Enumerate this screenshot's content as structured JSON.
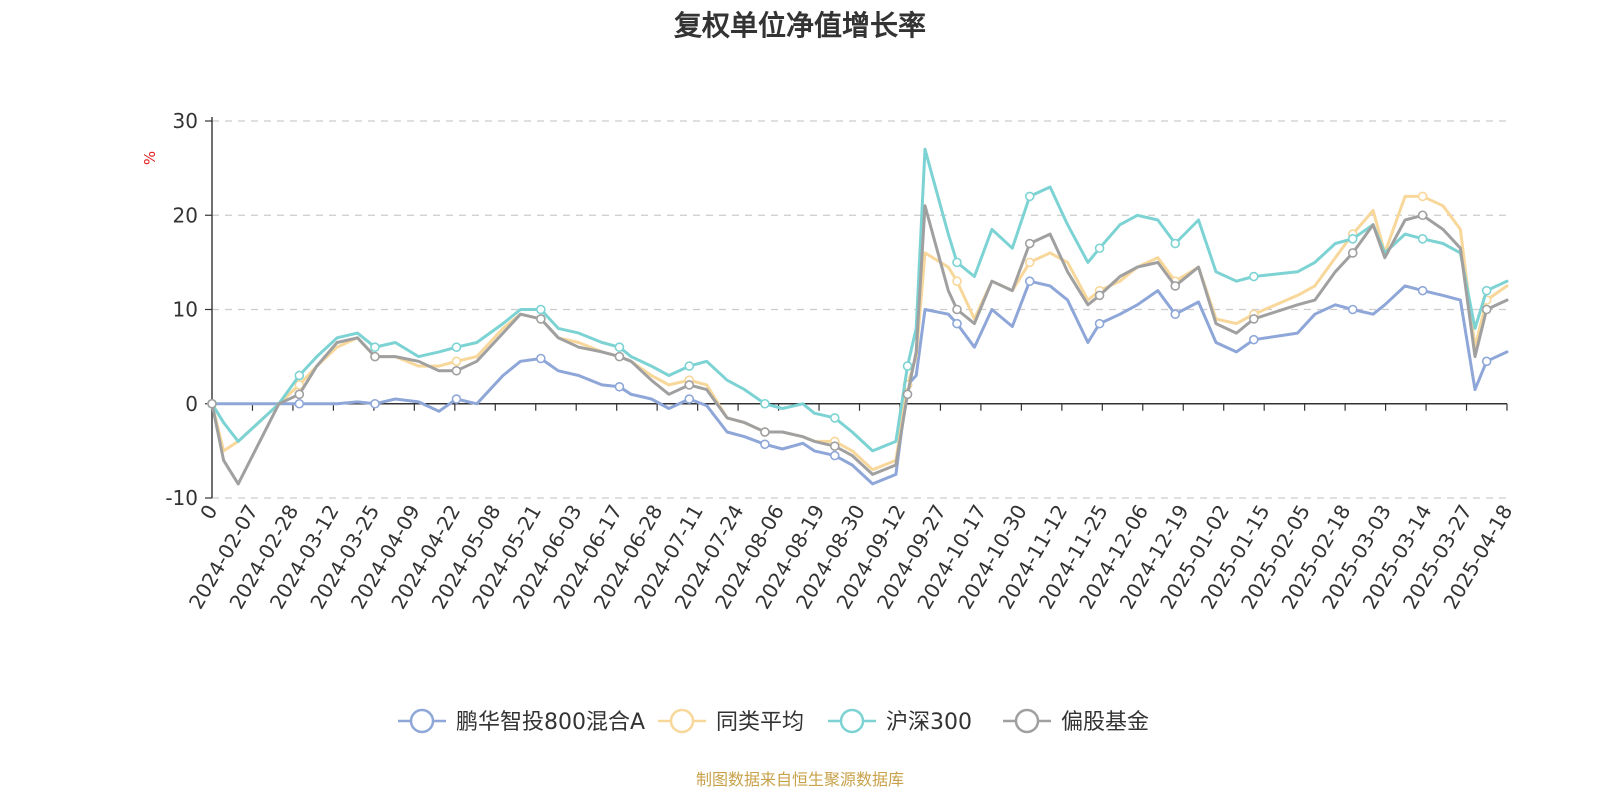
{
  "header": {
    "title": "复权单位净值增长率"
  },
  "footer": {
    "source": "制图数据来自恒生聚源数据库"
  },
  "colors": {
    "fund": "#8ea7d8",
    "peer": "#f8d79a",
    "index": "#7dd3d3",
    "equity": "#a0a0a0",
    "unit": "#e02020",
    "axis": "#333333",
    "grid": "#cccccc"
  },
  "chart_data": {
    "type": "line",
    "title": "复权单位净值增长率",
    "ylabel": "%",
    "ylim": [
      -10,
      30
    ],
    "yticks": [
      -10,
      0,
      10,
      20,
      30
    ],
    "grid": true,
    "legend_position": "bottom",
    "x_start_label": "0",
    "x_tick_labels": [
      "2024-02-07",
      "2024-02-28",
      "2024-03-12",
      "2024-03-25",
      "2024-04-09",
      "2024-04-22",
      "2024-05-08",
      "2024-05-21",
      "2024-06-03",
      "2024-06-17",
      "2024-06-28",
      "2024-07-11",
      "2024-07-24",
      "2024-08-06",
      "2024-08-19",
      "2024-08-30",
      "2024-09-12",
      "2024-09-27",
      "2024-10-17",
      "2024-10-30",
      "2024-11-12",
      "2024-11-25",
      "2024-12-06",
      "2024-12-19",
      "2025-01-02",
      "2025-01-15",
      "2025-02-05",
      "2025-02-18",
      "2025-03-03",
      "2025-03-14",
      "2025-03-27",
      "2025-04-18"
    ],
    "x": [
      "2024-01-29",
      "2024-02-02",
      "2024-02-07",
      "2024-02-21",
      "2024-02-28",
      "2024-03-05",
      "2024-03-12",
      "2024-03-19",
      "2024-03-25",
      "2024-04-01",
      "2024-04-09",
      "2024-04-16",
      "2024-04-22",
      "2024-04-29",
      "2024-05-08",
      "2024-05-14",
      "2024-05-21",
      "2024-05-27",
      "2024-06-03",
      "2024-06-11",
      "2024-06-17",
      "2024-06-21",
      "2024-06-28",
      "2024-07-04",
      "2024-07-11",
      "2024-07-17",
      "2024-07-24",
      "2024-07-30",
      "2024-08-06",
      "2024-08-12",
      "2024-08-19",
      "2024-08-23",
      "2024-08-30",
      "2024-09-05",
      "2024-09-12",
      "2024-09-20",
      "2024-09-24",
      "2024-09-27",
      "2024-09-30",
      "2024-10-08",
      "2024-10-11",
      "2024-10-17",
      "2024-10-23",
      "2024-10-30",
      "2024-11-05",
      "2024-11-12",
      "2024-11-18",
      "2024-11-25",
      "2024-11-29",
      "2024-12-06",
      "2024-12-12",
      "2024-12-19",
      "2024-12-25",
      "2025-01-02",
      "2025-01-08",
      "2025-01-15",
      "2025-01-21",
      "2025-02-05",
      "2025-02-11",
      "2025-02-18",
      "2025-02-24",
      "2025-03-03",
      "2025-03-07",
      "2025-03-14",
      "2025-03-20",
      "2025-03-27",
      "2025-04-02",
      "2025-04-07",
      "2025-04-11",
      "2025-04-18"
    ],
    "series": [
      {
        "name": "鹏华智投800混合A",
        "color": "#8ea7d8",
        "values": [
          0,
          0,
          0,
          0,
          0,
          0,
          0,
          0.2,
          0,
          0.5,
          0.2,
          -0.8,
          0.5,
          0,
          3,
          4.5,
          4.8,
          3.5,
          3,
          2,
          1.8,
          1,
          0.5,
          -0.5,
          0.5,
          -0.2,
          -3,
          -3.5,
          -4.3,
          -4.8,
          -4.2,
          -5,
          -5.5,
          -6.5,
          -8.5,
          -7.5,
          2,
          3,
          10,
          9.5,
          8.5,
          6,
          10,
          8.2,
          13,
          12.5,
          11,
          6.5,
          8.5,
          9.5,
          10.5,
          12,
          9.5,
          10.8,
          6.5,
          5.5,
          6.8,
          7.5,
          9.5,
          10.5,
          10,
          9.5,
          10.5,
          12.5,
          12,
          11.5,
          11,
          1.5,
          4.5,
          5.5
        ]
      },
      {
        "name": "同类平均",
        "color": "#f8d79a",
        "values": [
          0,
          -5,
          -4,
          0,
          2,
          4,
          6,
          7,
          5,
          5,
          4,
          4,
          4.5,
          5,
          8,
          9.5,
          9,
          7,
          6.5,
          5.5,
          5,
          4.5,
          3,
          2,
          2.5,
          2,
          -1.5,
          -2,
          -3,
          -3,
          -3.5,
          -4,
          -4,
          -5,
          -7,
          -6,
          2,
          5,
          16,
          14.5,
          13,
          9,
          13,
          12,
          15,
          16,
          15,
          11,
          12,
          13,
          14.5,
          15.5,
          13,
          14.5,
          9,
          8.5,
          9.5,
          11.5,
          12.5,
          15.5,
          18,
          20.5,
          16,
          22,
          22,
          21,
          18.5,
          6,
          11,
          12.5
        ]
      },
      {
        "name": "沪深300",
        "color": "#7dd3d3",
        "values": [
          0,
          -2,
          -4,
          0,
          3,
          5,
          7,
          7.5,
          6,
          6.5,
          5,
          5.5,
          6,
          6.5,
          8.5,
          10,
          10,
          8,
          7.5,
          6.5,
          6,
          5,
          4,
          3,
          4,
          4.5,
          2.5,
          1.5,
          0,
          -0.5,
          0,
          -1,
          -1.5,
          -3,
          -5,
          -4,
          4,
          8,
          27,
          18,
          15,
          13.5,
          18.5,
          16.5,
          22,
          23,
          19,
          15,
          16.5,
          19,
          20,
          19.5,
          17,
          19.5,
          14,
          13,
          13.5,
          14,
          15,
          17,
          17.5,
          19,
          16,
          18,
          17.5,
          17,
          16,
          8,
          12,
          13
        ]
      },
      {
        "name": "偏股基金",
        "color": "#a0a0a0",
        "values": [
          0,
          -6,
          -8.5,
          0,
          1,
          4,
          6.5,
          7,
          5,
          5,
          4.5,
          3.5,
          3.5,
          4.5,
          7.5,
          9.5,
          9,
          7,
          6,
          5.5,
          5,
          4.5,
          2.5,
          1,
          2,
          1.5,
          -1.5,
          -2,
          -3,
          -3,
          -3.5,
          -4,
          -4.5,
          -5.5,
          -7.5,
          -6.5,
          1,
          5.5,
          21,
          12,
          10,
          8.5,
          13,
          12,
          17,
          18,
          14,
          10.5,
          11.5,
          13.5,
          14.5,
          15,
          12.5,
          14.5,
          8.5,
          7.5,
          9,
          10.5,
          11,
          14,
          16,
          19,
          15.5,
          19.5,
          20,
          18.5,
          16.5,
          5,
          10,
          11
        ]
      }
    ]
  }
}
